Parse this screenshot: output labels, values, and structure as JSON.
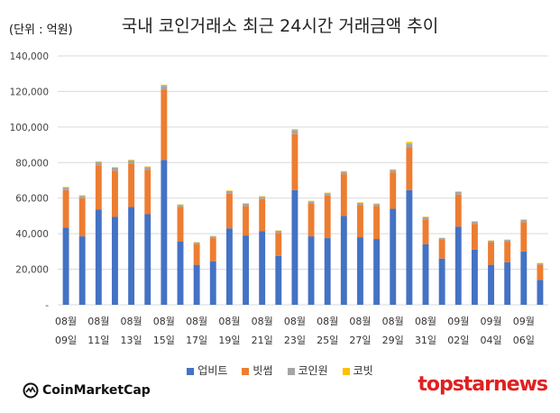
{
  "header": {
    "unit": "(단위 : 억원)",
    "title": "국내 코인거래소 최근 24시간 거래금액 추이"
  },
  "logos": {
    "left": "CoinMarketCap",
    "right": "topstarnews"
  },
  "chart_data": {
    "type": "bar",
    "stacked": true,
    "title": "국내 코인거래소 최근 24시간 거래금액 추이",
    "ylabel": "(단위 : 억원)",
    "ylim": [
      0,
      140000
    ],
    "yticks": [
      "-",
      "20,000",
      "40,000",
      "60,000",
      "80,000",
      "100,000",
      "120,000",
      "140,000"
    ],
    "grid": true,
    "legend_position": "bottom",
    "categories": [
      "08-09",
      "08-10",
      "08-11",
      "08-12",
      "08-13",
      "08-14",
      "08-15",
      "08-16",
      "08-17",
      "08-18",
      "08-19",
      "08-20",
      "08-21",
      "08-22",
      "08-23",
      "08-24",
      "08-25",
      "08-26",
      "08-27",
      "08-28",
      "08-29",
      "08-30",
      "08-31",
      "09-01",
      "09-02",
      "09-03",
      "09-04",
      "09-05",
      "09-06",
      "09-07"
    ],
    "xtick_labels": [
      {
        "index": 0,
        "month": "08월",
        "day": "09일"
      },
      {
        "index": 2,
        "month": "08월",
        "day": "11일"
      },
      {
        "index": 4,
        "month": "08월",
        "day": "13일"
      },
      {
        "index": 6,
        "month": "08월",
        "day": "15일"
      },
      {
        "index": 8,
        "month": "08월",
        "day": "17일"
      },
      {
        "index": 10,
        "month": "08월",
        "day": "19일"
      },
      {
        "index": 12,
        "month": "08월",
        "day": "21일"
      },
      {
        "index": 14,
        "month": "08월",
        "day": "23일"
      },
      {
        "index": 16,
        "month": "08월",
        "day": "25일"
      },
      {
        "index": 18,
        "month": "08월",
        "day": "27일"
      },
      {
        "index": 20,
        "month": "08월",
        "day": "29일"
      },
      {
        "index": 22,
        "month": "08월",
        "day": "31일"
      },
      {
        "index": 24,
        "month": "09월",
        "day": "02일"
      },
      {
        "index": 26,
        "month": "09월",
        "day": "04일"
      },
      {
        "index": 28,
        "month": "09월",
        "day": "06일"
      }
    ],
    "series": [
      {
        "name": "업비트",
        "color": "#4472c4",
        "values": [
          43500,
          38500,
          53500,
          49500,
          55000,
          51000,
          81500,
          35500,
          22500,
          24500,
          43000,
          39000,
          41500,
          27500,
          64500,
          38500,
          37500,
          50000,
          38000,
          37000,
          54000,
          64500,
          34000,
          26000,
          44000,
          31000,
          22500,
          24000,
          30000,
          14000
        ]
      },
      {
        "name": "빗썸",
        "color": "#ed7d31",
        "values": [
          21000,
          21500,
          25000,
          26000,
          24500,
          25000,
          39500,
          19500,
          11500,
          13000,
          19500,
          16500,
          18000,
          13000,
          31500,
          18500,
          24000,
          23500,
          18000,
          18500,
          20500,
          24000,
          14000,
          10500,
          18000,
          14500,
          12500,
          11500,
          16500,
          8500
        ]
      },
      {
        "name": "코인원",
        "color": "#a5a5a5",
        "values": [
          1500,
          1300,
          1800,
          1600,
          1700,
          1500,
          2200,
          1200,
          1000,
          1000,
          1500,
          1300,
          1300,
          1100,
          2300,
          1200,
          1300,
          1400,
          1300,
          1200,
          1400,
          2200,
          1300,
          1000,
          1500,
          1200,
          1000,
          1000,
          1200,
          800
        ]
      },
      {
        "name": "코빗",
        "color": "#ffc000",
        "values": [
          300,
          300,
          400,
          300,
          400,
          300,
          600,
          300,
          200,
          200,
          300,
          300,
          300,
          200,
          500,
          300,
          300,
          300,
          300,
          300,
          300,
          900,
          300,
          200,
          300,
          300,
          200,
          200,
          300,
          200
        ]
      }
    ]
  }
}
